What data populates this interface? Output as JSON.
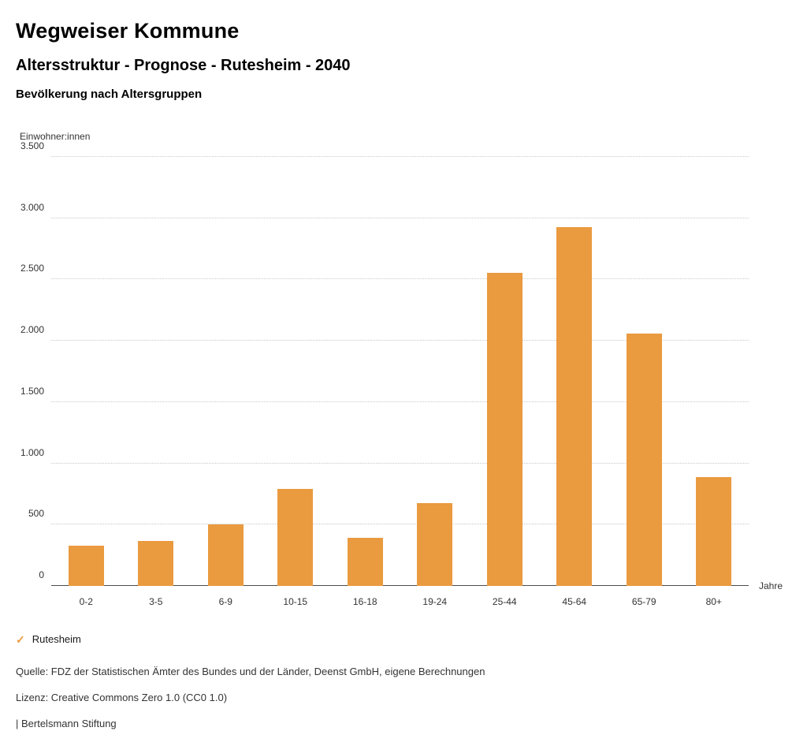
{
  "header": {
    "title": "Wegweiser Kommune",
    "subtitle": "Altersstruktur - Prognose - Rutesheim - 2040",
    "chart_heading": "Bevölkerung nach Altersgruppen"
  },
  "chart_data": {
    "type": "bar",
    "title": "Bevölkerung nach Altersgruppen",
    "ylabel": "Einwohner:innen",
    "xlabel": "Jahre",
    "categories": [
      "0-2",
      "3-5",
      "6-9",
      "10-15",
      "16-18",
      "19-24",
      "25-44",
      "45-64",
      "65-79",
      "80+"
    ],
    "values": [
      330,
      365,
      505,
      790,
      395,
      675,
      2555,
      2930,
      2060,
      885
    ],
    "ylim": [
      0,
      3500
    ],
    "ytick_interval": 500,
    "ytick_labels": [
      "0",
      "500",
      "1.000",
      "1.500",
      "2.000",
      "2.500",
      "3.000",
      "3.500"
    ],
    "grid": true,
    "bar_color": "#EA9A3F",
    "legend_position": "bottom-left",
    "legend": [
      {
        "label": "Rutesheim",
        "color": "#EA9A3F"
      }
    ]
  },
  "legend": {
    "check_icon": "✓",
    "label": "Rutesheim"
  },
  "footer": {
    "source": "Quelle: FDZ der Statistischen Ämter des Bundes und der Länder, Deenst GmbH, eigene Berechnungen",
    "license": "Lizenz: Creative Commons Zero 1.0 (CC0 1.0)",
    "attribution": "| Bertelsmann Stiftung"
  }
}
